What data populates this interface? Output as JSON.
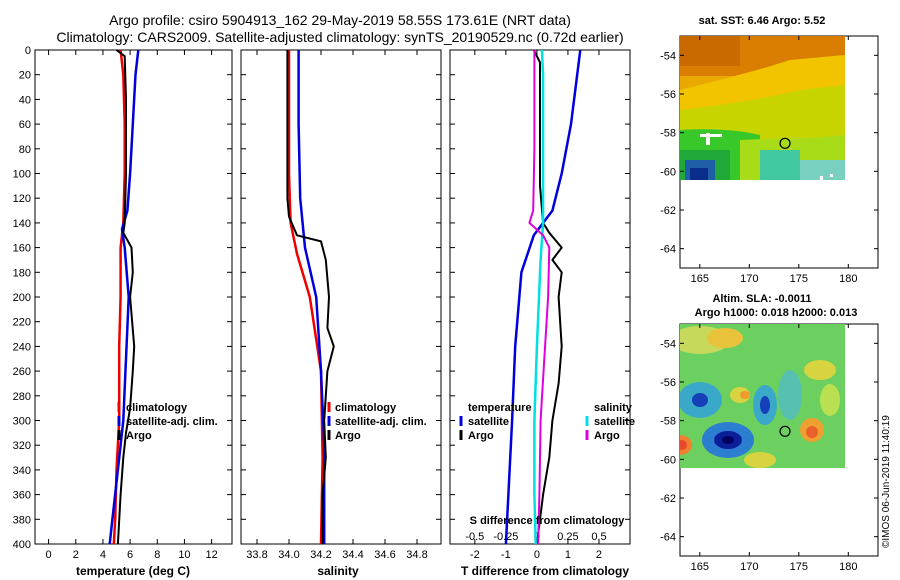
{
  "header": {
    "line1": "Argo profile: csiro 5904913_162 29-May-2019 58.55S 173.61E (NRT data)",
    "line2": "Climatology: CARS2009. Satellite-adjusted climatology: synTS_20190529.nc (0.72d earlier)"
  },
  "credit": "©IMOS 06-Jun-2019 11:40:19",
  "colors": {
    "argo": "#000000",
    "climatology": "#ee0000",
    "satellite": "#0000dd",
    "s_satellite": "#00e0e0",
    "s_argo": "#dd00dd"
  },
  "chart_data": [
    {
      "id": "temperature",
      "type": "line",
      "xlabel": "temperature (deg C)",
      "ylabel": "depth",
      "xlim": [
        -1,
        13.5
      ],
      "xticks": [
        0,
        2,
        4,
        6,
        8,
        10,
        12
      ],
      "ylim": [
        0,
        400
      ],
      "yticks": [
        0,
        20,
        40,
        60,
        80,
        100,
        120,
        140,
        160,
        180,
        200,
        220,
        240,
        260,
        280,
        300,
        320,
        340,
        360,
        380,
        400
      ],
      "legend": [
        "climatology",
        "satellite-adj. clim.",
        "Argo"
      ],
      "series": [
        {
          "name": "climatology",
          "color": "#ee0000",
          "values": [
            [
              5.3,
              0
            ],
            [
              5.5,
              20
            ],
            [
              5.6,
              60
            ],
            [
              5.6,
              100
            ],
            [
              5.5,
              140
            ],
            [
              5.3,
              160
            ],
            [
              5.3,
              200
            ],
            [
              5.2,
              240
            ],
            [
              5.2,
              300
            ],
            [
              5.0,
              340
            ],
            [
              4.9,
              380
            ],
            [
              4.8,
              400
            ]
          ]
        },
        {
          "name": "satellite-adj. clim.",
          "color": "#0000dd",
          "values": [
            [
              6.6,
              0
            ],
            [
              6.4,
              20
            ],
            [
              6.2,
              60
            ],
            [
              6.0,
              100
            ],
            [
              5.8,
              130
            ],
            [
              5.4,
              145
            ],
            [
              5.6,
              160
            ],
            [
              5.9,
              200
            ],
            [
              5.7,
              250
            ],
            [
              5.5,
              300
            ],
            [
              5.1,
              340
            ],
            [
              4.7,
              380
            ],
            [
              4.5,
              400
            ]
          ]
        },
        {
          "name": "Argo",
          "color": "#000000",
          "values": [
            [
              5.0,
              0
            ],
            [
              5.6,
              5
            ],
            [
              5.7,
              40
            ],
            [
              5.7,
              100
            ],
            [
              5.6,
              140
            ],
            [
              5.5,
              148
            ],
            [
              6.1,
              160
            ],
            [
              6.2,
              180
            ],
            [
              6.0,
              200
            ],
            [
              6.3,
              240
            ],
            [
              6.2,
              260
            ],
            [
              6.0,
              290
            ],
            [
              5.7,
              310
            ],
            [
              5.5,
              330
            ],
            [
              5.3,
              360
            ],
            [
              5.1,
              400
            ]
          ]
        }
      ]
    },
    {
      "id": "salinity",
      "type": "line",
      "xlabel": "salinity",
      "ylim": [
        0,
        400
      ],
      "xlim": [
        33.7,
        34.95
      ],
      "xticks": [
        33.8,
        34.0,
        34.2,
        34.4,
        34.6,
        34.8
      ],
      "legend": [
        "climatology",
        "satellite-adj. clim.",
        "Argo"
      ],
      "series": [
        {
          "name": "climatology",
          "color": "#ee0000",
          "values": [
            [
              34.0,
              0
            ],
            [
              34.0,
              100
            ],
            [
              34.01,
              140
            ],
            [
              34.05,
              165
            ],
            [
              34.13,
              200
            ],
            [
              34.2,
              260
            ],
            [
              34.21,
              330
            ],
            [
              34.2,
              400
            ]
          ]
        },
        {
          "name": "satellite-adj. clim.",
          "color": "#0000dd",
          "values": [
            [
              34.06,
              0
            ],
            [
              34.06,
              60
            ],
            [
              34.07,
              120
            ],
            [
              34.1,
              160
            ],
            [
              34.17,
              200
            ],
            [
              34.2,
              260
            ],
            [
              34.22,
              320
            ],
            [
              34.22,
              400
            ]
          ]
        },
        {
          "name": "Argo",
          "color": "#000000",
          "values": [
            [
              33.99,
              0
            ],
            [
              33.99,
              120
            ],
            [
              34.0,
              135
            ],
            [
              34.05,
              150
            ],
            [
              34.2,
              155
            ],
            [
              34.23,
              170
            ],
            [
              34.25,
              200
            ],
            [
              34.24,
              225
            ],
            [
              34.28,
              240
            ],
            [
              34.24,
              260
            ],
            [
              34.22,
              300
            ],
            [
              34.23,
              330
            ],
            [
              34.21,
              360
            ],
            [
              34.21,
              400
            ]
          ]
        }
      ]
    },
    {
      "id": "difference",
      "type": "line",
      "xlabel": "T difference from climatology",
      "x2label": "S difference from climatology",
      "ylim": [
        0,
        400
      ],
      "xlim": [
        -2.8,
        3.0
      ],
      "xticks": [
        -2,
        -1,
        0,
        1,
        2
      ],
      "x2lim": [
        -0.7,
        0.75
      ],
      "x2ticks": [
        -0.5,
        -0.25,
        0,
        0.25,
        0.5
      ],
      "legend_temperature_title": "temperature",
      "legend_salinity_title": "salinity",
      "legend": [
        "satellite",
        "Argo"
      ],
      "series": [
        {
          "name": "temperature satellite",
          "axis": "T",
          "color": "#0000dd",
          "values": [
            [
              1.4,
              0
            ],
            [
              1.3,
              20
            ],
            [
              1.1,
              60
            ],
            [
              0.8,
              100
            ],
            [
              0.5,
              130
            ],
            [
              -0.1,
              150
            ],
            [
              -0.5,
              180
            ],
            [
              -0.7,
              240
            ],
            [
              -0.8,
              300
            ],
            [
              -0.9,
              350
            ],
            [
              -1.0,
              400
            ]
          ]
        },
        {
          "name": "temperature Argo",
          "axis": "T",
          "color": "#000000",
          "values": [
            [
              -0.1,
              0
            ],
            [
              0.1,
              10
            ],
            [
              0.1,
              60
            ],
            [
              0.1,
              110
            ],
            [
              0.2,
              140
            ],
            [
              0.4,
              148
            ],
            [
              0.8,
              160
            ],
            [
              0.5,
              170
            ],
            [
              0.8,
              180
            ],
            [
              0.7,
              200
            ],
            [
              0.8,
              240
            ],
            [
              0.7,
              270
            ],
            [
              0.5,
              300
            ],
            [
              0.4,
              330
            ],
            [
              0.2,
              360
            ],
            [
              0.0,
              400
            ]
          ]
        },
        {
          "name": "salinity satellite",
          "axis": "S",
          "color": "#00e0e0",
          "values": [
            [
              0.04,
              0
            ],
            [
              0.05,
              20
            ],
            [
              0.05,
              100
            ],
            [
              0.05,
              140
            ],
            [
              0.03,
              170
            ],
            [
              0.0,
              240
            ],
            [
              -0.02,
              300
            ],
            [
              -0.02,
              360
            ],
            [
              -0.01,
              400
            ]
          ]
        },
        {
          "name": "salinity Argo",
          "axis": "S",
          "color": "#dd00dd",
          "values": [
            [
              -0.02,
              0
            ],
            [
              -0.02,
              80
            ],
            [
              -0.03,
              130
            ],
            [
              -0.06,
              140
            ],
            [
              0.05,
              150
            ],
            [
              0.1,
              160
            ],
            [
              0.09,
              200
            ],
            [
              0.06,
              250
            ],
            [
              0.03,
              300
            ],
            [
              0.02,
              360
            ],
            [
              0.01,
              400
            ]
          ]
        }
      ]
    },
    {
      "id": "sst-map",
      "type": "heatmap",
      "title": "sat. SST: 6.46 Argo: 5.52",
      "xlim": [
        163,
        183
      ],
      "ylim": [
        -65,
        -53
      ],
      "xticks": [
        165,
        170,
        175,
        180
      ],
      "yticks": [
        -54,
        -56,
        -58,
        -60,
        -62,
        -64
      ],
      "argo_position": [
        173.61,
        -58.55
      ]
    },
    {
      "id": "sla-map",
      "type": "heatmap",
      "title": "Altim. SLA: -0.0011",
      "subtitle": "Argo h1000: 0.018 h2000: 0.013",
      "xlim": [
        163,
        183
      ],
      "ylim": [
        -65,
        -53
      ],
      "xticks": [
        165,
        170,
        175,
        180
      ],
      "yticks": [
        -54,
        -56,
        -58,
        -60,
        -62,
        -64
      ],
      "argo_position": [
        173.61,
        -58.55
      ]
    }
  ]
}
